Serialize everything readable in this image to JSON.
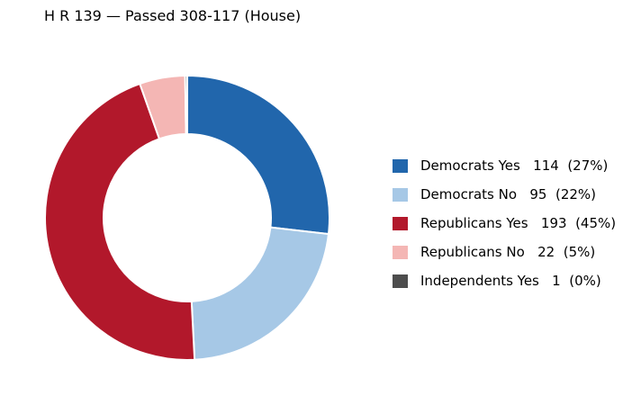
{
  "chart_data": {
    "type": "pie",
    "title": "H R 139 — Passed 308-117 (House)",
    "slices": [
      {
        "label": "Democrats Yes",
        "value": 114,
        "percent_label": "(27%)",
        "color": "#2166ac"
      },
      {
        "label": "Democrats No",
        "value": 95,
        "percent_label": "(22%)",
        "color": "#a6c8e6"
      },
      {
        "label": "Republicans Yes",
        "value": 193,
        "percent_label": "(45%)",
        "color": "#b2182b"
      },
      {
        "label": "Republicans No",
        "value": 22,
        "percent_label": "(5%)",
        "color": "#f4b6b4"
      },
      {
        "label": "Independents Yes",
        "value": 1,
        "percent_label": "(0%)",
        "color": "#4d4d4d"
      }
    ],
    "legend_position": "right",
    "donut": true
  }
}
